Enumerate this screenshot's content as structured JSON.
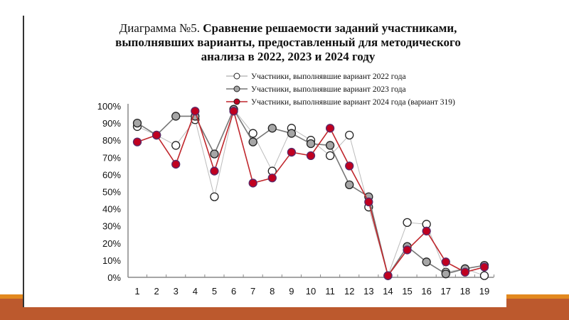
{
  "chart_data": {
    "type": "line",
    "title_prefix": "Диаграмма №5.",
    "title": "Сравнение решаемости заданий участниками, выполнявших варианты, предоставленный для методического анализа в 2022, 2023 и 2024 году",
    "x": [
      1,
      2,
      3,
      4,
      5,
      6,
      7,
      8,
      9,
      10,
      11,
      12,
      13,
      14,
      15,
      16,
      17,
      18,
      19
    ],
    "ylim": [
      0,
      100
    ],
    "yticks": [
      "0%",
      "10%",
      "20%",
      "30%",
      "40%",
      "50%",
      "60%",
      "70%",
      "80%",
      "90%",
      "100%"
    ],
    "grid": false,
    "legend_position": "top-right",
    "series": [
      {
        "name": "Участники, выполнявшие вариант 2022 года",
        "line_color": "#BBBBBB",
        "marker_fill": "#FFFFFF",
        "values": [
          88,
          83,
          77,
          92,
          47,
          98,
          84,
          62,
          87,
          80,
          71,
          83,
          41,
          1,
          32,
          31,
          3,
          5,
          1
        ]
      },
      {
        "name": "Участники, выполнявшие вариант 2023 года",
        "line_color": "#777777",
        "marker_fill": "#A6A6A6",
        "values": [
          90,
          83,
          94,
          94,
          72,
          98,
          79,
          87,
          84,
          78,
          77,
          54,
          47,
          1,
          18,
          9,
          2,
          5,
          7
        ]
      },
      {
        "name": "Участники, выполнявшие вариант 2024 года (вариант 319)",
        "line_color": "#C0272D",
        "marker_fill": "#C00020",
        "values": [
          79,
          83,
          66,
          97,
          62,
          97,
          55,
          58,
          73,
          71,
          87,
          65,
          44,
          1,
          16,
          27,
          9,
          3,
          6
        ]
      }
    ]
  }
}
